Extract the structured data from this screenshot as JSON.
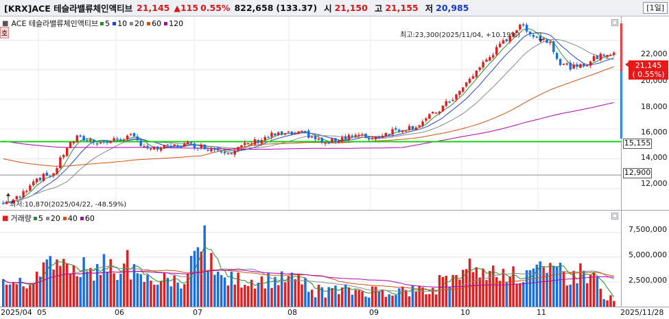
{
  "header": {
    "code": "[KRX]ACE 테슬라밸류체인액티브",
    "price": "21,145",
    "change": "▲115",
    "change_pct": "0.55%",
    "volume": "822,658",
    "amount": "(133.37)",
    "open_label": "시",
    "open": "21,150",
    "high_label": "고",
    "high": "21,155",
    "low_label": "저",
    "low": "20,985",
    "period_button": "[1일]"
  },
  "main_legend": {
    "name": "ACE 테슬라밸류체인액티브",
    "side_tag": "호",
    "ma": [
      {
        "label": "5",
        "color": "#2b8a2b"
      },
      {
        "label": "10",
        "color": "#2244cc"
      },
      {
        "label": "20",
        "color": "#888888"
      },
      {
        "label": "60",
        "color": "#d05010"
      },
      {
        "label": "120",
        "color": "#b000b0"
      }
    ]
  },
  "annotations": {
    "high": "최고:23,300(2025/11/04, +10.19%)",
    "low": "최저:10,870(2025/04/22, -48.59%)"
  },
  "price_axis": {
    "ticks": [
      "22,000",
      "20,000",
      "18,000",
      "16,000",
      "14,000",
      "12,000"
    ],
    "current_price": "21,145",
    "current_change": "( 0.55%)",
    "green_line_label": "15,155",
    "gray_line_label": "12,900"
  },
  "volume_legend": {
    "name": "거래량",
    "ma": [
      {
        "label": "5",
        "color": "#2b8a2b"
      },
      {
        "label": "20",
        "color": "#888888"
      },
      {
        "label": "40",
        "color": "#d05010"
      },
      {
        "label": "60",
        "color": "#b000b0"
      }
    ]
  },
  "volume_axis": {
    "ticks": [
      "7,500,000",
      "5,000,000",
      "2,500,000"
    ]
  },
  "date_axis": {
    "labels": [
      "2025/04",
      "05",
      "06",
      "07",
      "08",
      "09",
      "10",
      "11",
      "2025/11/28"
    ]
  },
  "colors": {
    "up": "#e02020",
    "down": "#1a6fe0",
    "support": "#16d016",
    "reference": "#888888"
  },
  "chart_data": [
    {
      "type": "candlestick",
      "title": "ACE 테슬라밸류체인액티브",
      "ylim": [
        10500,
        23600
      ],
      "x": [
        "2025/04",
        "05",
        "06",
        "07",
        "08",
        "09",
        "10",
        "11",
        "2025/11/28"
      ],
      "close_approx": [
        11000,
        12800,
        14200,
        15600,
        15000,
        14500,
        15300,
        15100,
        16000,
        15600,
        17000,
        20000,
        21500,
        22300,
        21200,
        20700,
        21145
      ],
      "high": 23300,
      "low": 10870,
      "moving_averages": [
        "5",
        "10",
        "20",
        "60",
        "120"
      ]
    },
    {
      "type": "bar",
      "title": "거래량",
      "ylim": [
        0,
        9000000
      ],
      "x": [
        "2025/04",
        "05",
        "06",
        "07",
        "08",
        "09",
        "10",
        "11",
        "2025/11/28"
      ],
      "max_approx": 8200000,
      "moving_averages": [
        "5",
        "20",
        "40",
        "60"
      ]
    }
  ]
}
